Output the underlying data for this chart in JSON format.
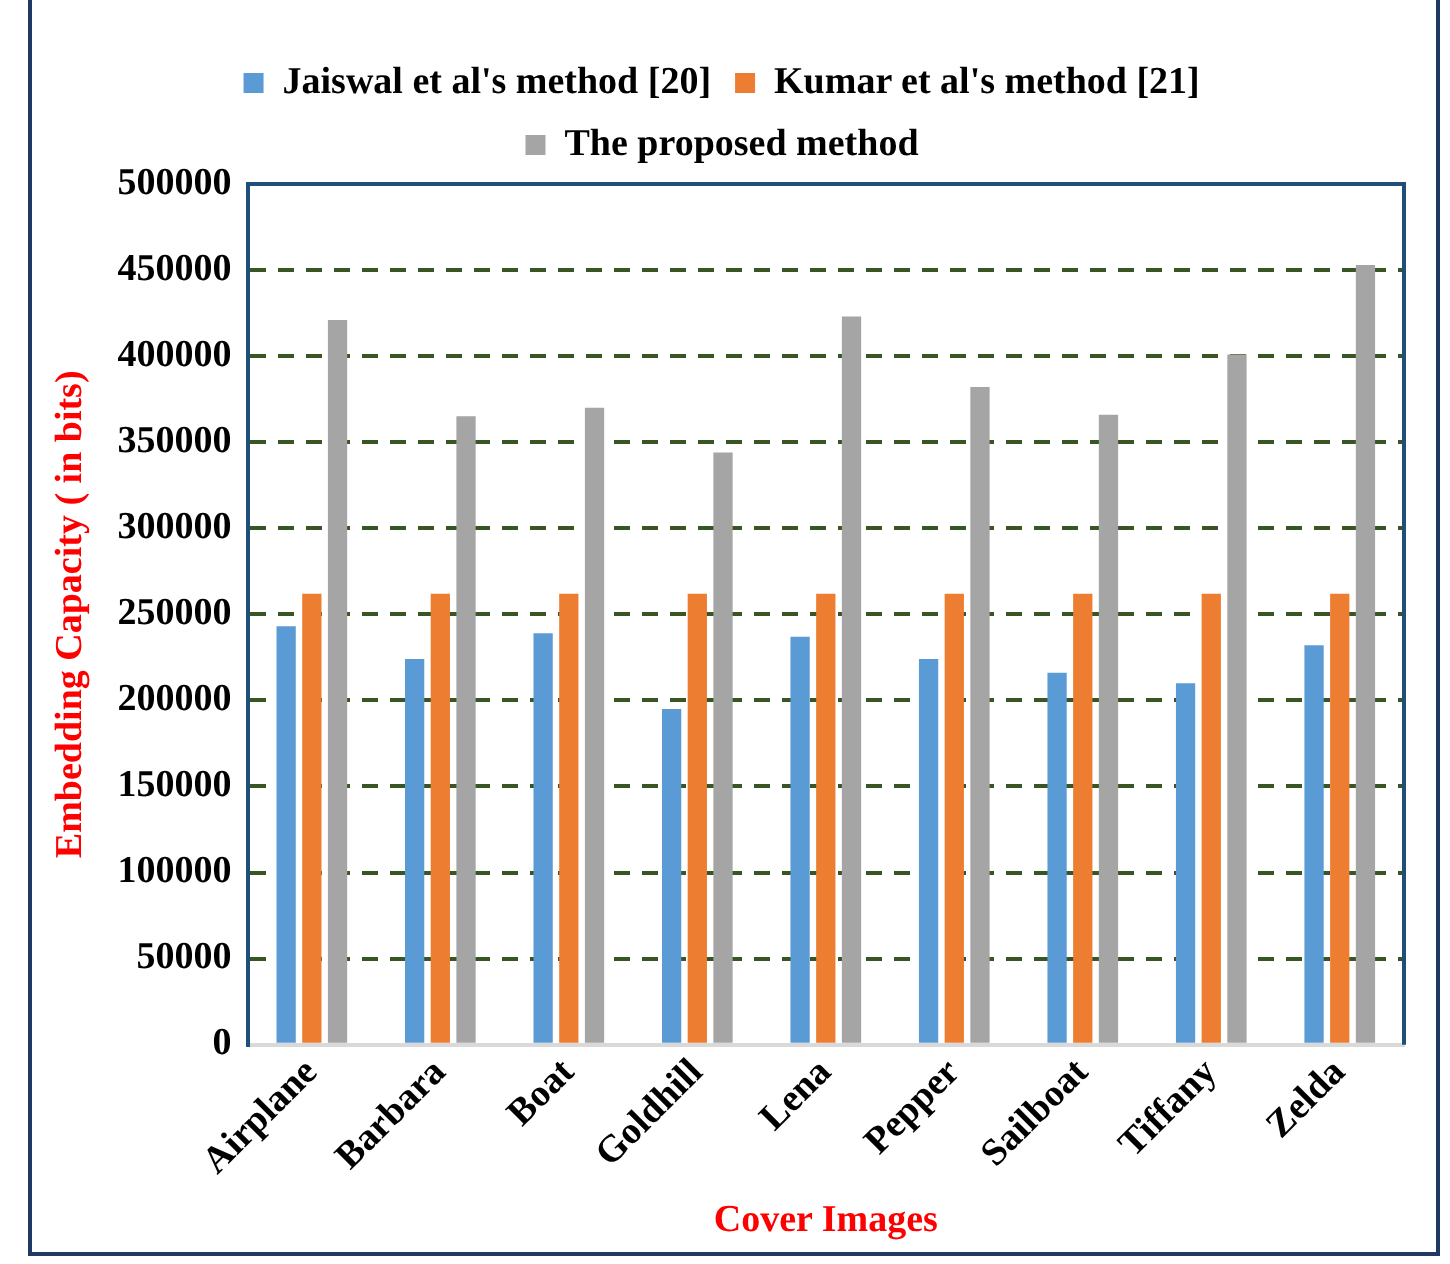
{
  "chart_data": {
    "type": "bar",
    "xlabel": "Cover Images",
    "ylabel": "Embedding Capacity ( in bits)",
    "categories": [
      "Airplane",
      "Barbara",
      "Boat",
      "Goldhill",
      "Lena",
      "Pepper",
      "Sailboat",
      "Tiffany",
      "Zelda"
    ],
    "series": [
      {
        "name": "Jaiswal et al's method [20]",
        "color": "#5b9bd5",
        "values": [
          243000,
          224000,
          239000,
          195000,
          237000,
          224000,
          216000,
          210000,
          232000
        ]
      },
      {
        "name": "Kumar et al's method [21]",
        "color": "#ed7d31",
        "values": [
          262000,
          262000,
          262000,
          262000,
          262000,
          262000,
          262000,
          262000,
          262000
        ]
      },
      {
        "name": "The proposed method",
        "color": "#a5a5a5",
        "values": [
          421000,
          365000,
          370000,
          344000,
          423000,
          382000,
          366000,
          401000,
          453000
        ]
      }
    ],
    "ylim": [
      0,
      500000
    ],
    "yticks": [
      0,
      50000,
      100000,
      150000,
      200000,
      250000,
      300000,
      350000,
      400000,
      450000,
      500000
    ],
    "grid": "y",
    "legend": "top"
  }
}
